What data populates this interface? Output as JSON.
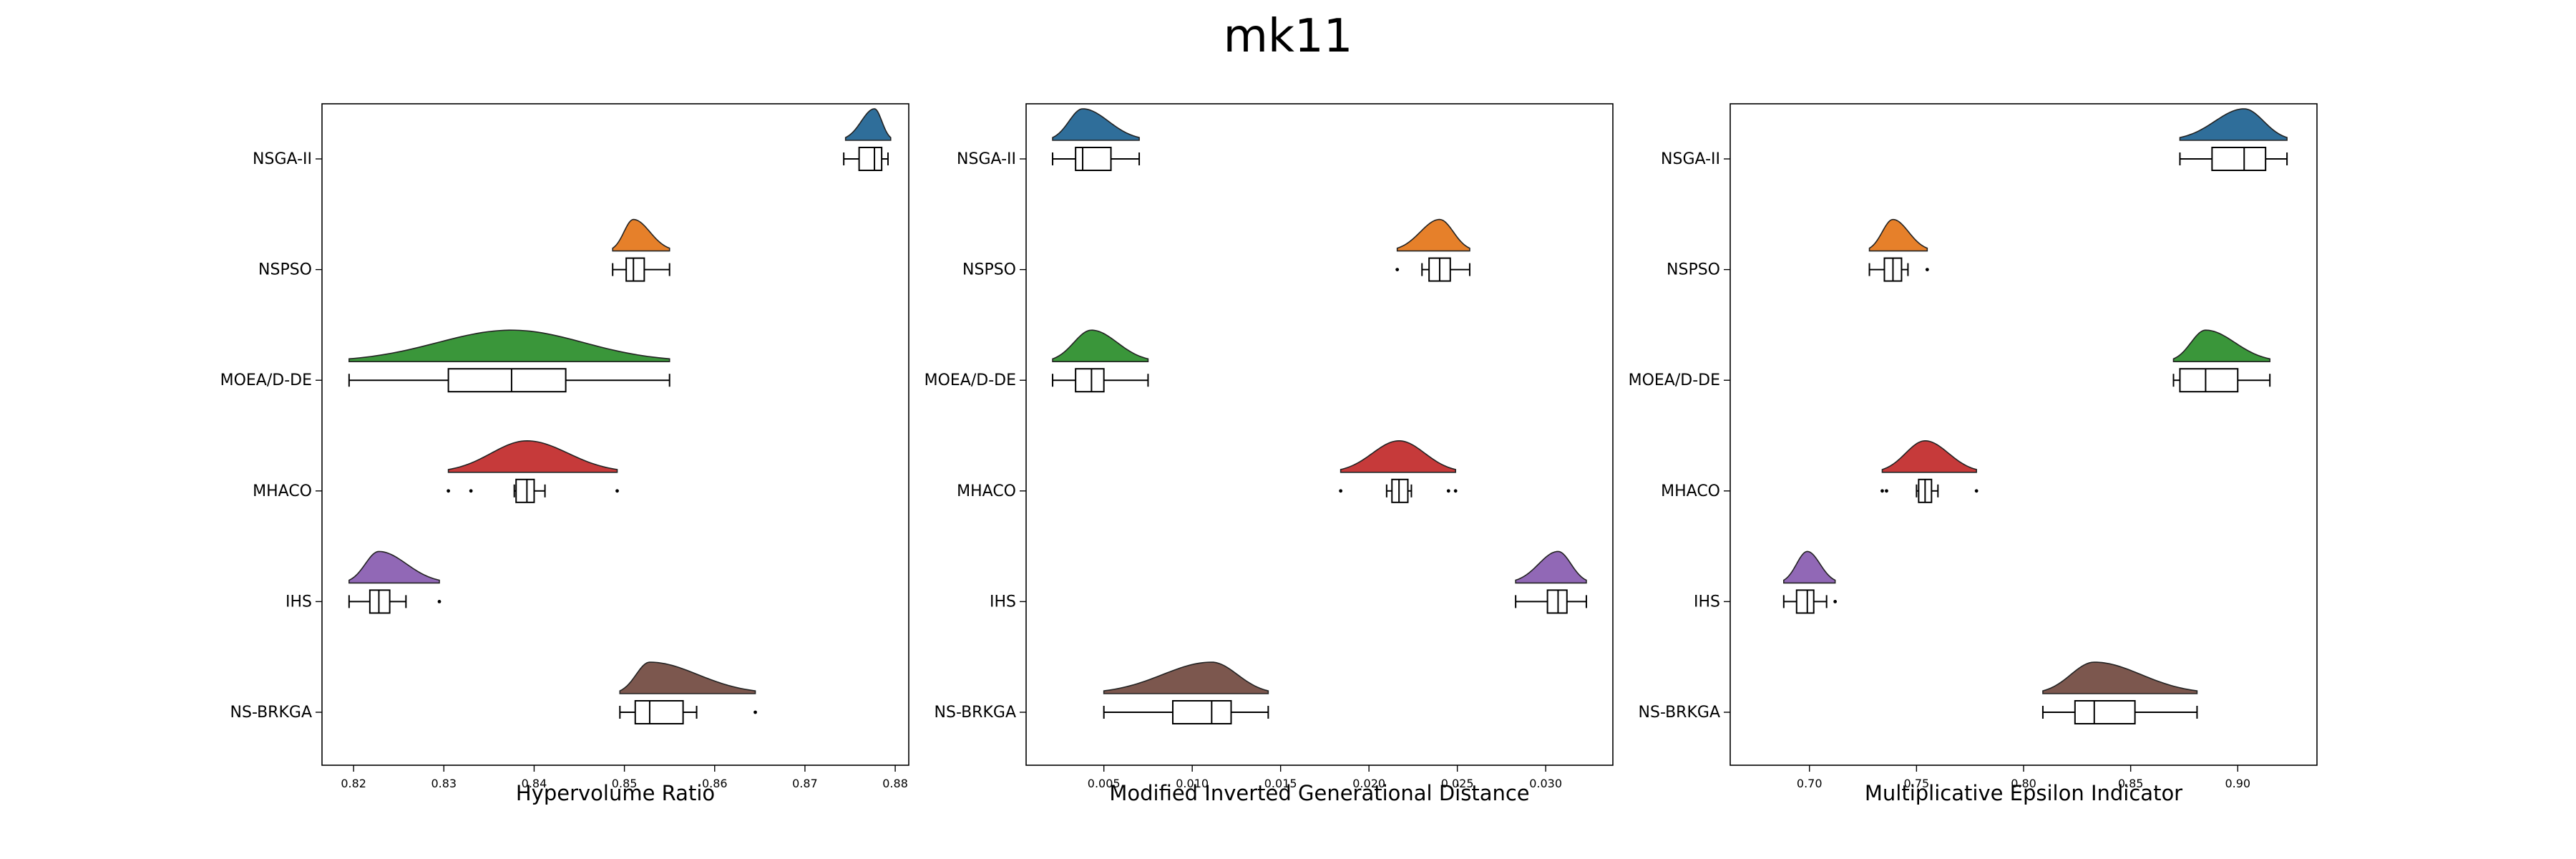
{
  "figure": {
    "title": "mk11"
  },
  "palette": {
    "NSGA-II": "#2f6e9a",
    "NSPSO": "#e6802a",
    "MOEA/D-DE": "#3a963a",
    "MHACO": "#c63a3a",
    "IHS": "#9168b6",
    "NS-BRKGA": "#7c574e"
  },
  "chart_data": [
    {
      "type": "raincloud",
      "title": "",
      "xlabel": "Hypervolume Ratio",
      "ylabel": "",
      "xlim": [
        0.8165,
        0.8815
      ],
      "xticks": [
        0.82,
        0.83,
        0.84,
        0.85,
        0.86,
        0.87,
        0.88
      ],
      "xtick_labels": [
        "0.82",
        "0.83",
        "0.84",
        "0.85",
        "0.86",
        "0.87",
        "0.88"
      ],
      "categories": [
        "NSGA-II",
        "NSPSO",
        "MOEA/D-DE",
        "MHACO",
        "IHS",
        "NS-BRKGA"
      ],
      "series": [
        {
          "name": "NSGA-II",
          "violin_range": [
            0.8745,
            0.8795
          ],
          "whisker_low": 0.8743,
          "q1": 0.876,
          "median": 0.8777,
          "q3": 0.8785,
          "whisker_high": 0.8792,
          "outliers": []
        },
        {
          "name": "NSPSO",
          "violin_range": [
            0.8487,
            0.855
          ],
          "whisker_low": 0.8487,
          "q1": 0.8502,
          "median": 0.851,
          "q3": 0.8522,
          "whisker_high": 0.855,
          "outliers": []
        },
        {
          "name": "MOEA/D-DE",
          "violin_range": [
            0.8195,
            0.855
          ],
          "whisker_low": 0.8195,
          "q1": 0.8305,
          "median": 0.8375,
          "q3": 0.8435,
          "whisker_high": 0.855,
          "outliers": []
        },
        {
          "name": "MHACO",
          "violin_range": [
            0.8305,
            0.8492
          ],
          "whisker_low": 0.8378,
          "q1": 0.838,
          "median": 0.8392,
          "q3": 0.84,
          "whisker_high": 0.8412,
          "outliers": [
            0.8305,
            0.833,
            0.8492
          ]
        },
        {
          "name": "IHS",
          "violin_range": [
            0.8195,
            0.8295
          ],
          "whisker_low": 0.8195,
          "q1": 0.8218,
          "median": 0.8228,
          "q3": 0.824,
          "whisker_high": 0.8258,
          "outliers": [
            0.8295
          ]
        },
        {
          "name": "NS-BRKGA",
          "violin_range": [
            0.8495,
            0.8645
          ],
          "whisker_low": 0.8495,
          "q1": 0.8512,
          "median": 0.8528,
          "q3": 0.8565,
          "whisker_high": 0.858,
          "outliers": [
            0.8645
          ]
        }
      ]
    },
    {
      "type": "raincloud",
      "title": "",
      "xlabel": "Modified Inverted Generational Distance",
      "ylabel": "",
      "xlim": [
        0.0006,
        0.0338
      ],
      "xticks": [
        0.005,
        0.01,
        0.015,
        0.02,
        0.025,
        0.03
      ],
      "xtick_labels": [
        "0.005",
        "0.010",
        "0.015",
        "0.020",
        "0.025",
        "0.030"
      ],
      "categories": [
        "NSGA-II",
        "NSPSO",
        "MOEA/D-DE",
        "MHACO",
        "IHS",
        "NS-BRKGA"
      ],
      "series": [
        {
          "name": "NSGA-II",
          "violin_range": [
            0.0021,
            0.007
          ],
          "whisker_low": 0.0021,
          "q1": 0.0034,
          "median": 0.0038,
          "q3": 0.0054,
          "whisker_high": 0.007,
          "outliers": []
        },
        {
          "name": "NSPSO",
          "violin_range": [
            0.0216,
            0.0257
          ],
          "whisker_low": 0.023,
          "q1": 0.0234,
          "median": 0.024,
          "q3": 0.0246,
          "whisker_high": 0.0257,
          "outliers": [
            0.0216
          ]
        },
        {
          "name": "MOEA/D-DE",
          "violin_range": [
            0.0021,
            0.0075
          ],
          "whisker_low": 0.0021,
          "q1": 0.0034,
          "median": 0.0043,
          "q3": 0.005,
          "whisker_high": 0.0075,
          "outliers": []
        },
        {
          "name": "MHACO",
          "violin_range": [
            0.0184,
            0.0249
          ],
          "whisker_low": 0.021,
          "q1": 0.0213,
          "median": 0.0217,
          "q3": 0.0222,
          "whisker_high": 0.0224,
          "outliers": [
            0.0184,
            0.0245,
            0.0249
          ]
        },
        {
          "name": "IHS",
          "violin_range": [
            0.0283,
            0.0323
          ],
          "whisker_low": 0.0283,
          "q1": 0.0301,
          "median": 0.0307,
          "q3": 0.0312,
          "whisker_high": 0.0323,
          "outliers": []
        },
        {
          "name": "NS-BRKGA",
          "violin_range": [
            0.005,
            0.0143
          ],
          "whisker_low": 0.005,
          "q1": 0.0089,
          "median": 0.0111,
          "q3": 0.0122,
          "whisker_high": 0.0143,
          "outliers": []
        }
      ]
    },
    {
      "type": "raincloud",
      "title": "",
      "xlabel": "Multiplicative Epsilon Indicator",
      "ylabel": "",
      "xlim": [
        0.663,
        0.937
      ],
      "xticks": [
        0.7,
        0.75,
        0.8,
        0.85,
        0.9
      ],
      "xtick_labels": [
        "0.70",
        "0.75",
        "0.80",
        "0.85",
        "0.90"
      ],
      "categories": [
        "NSGA-II",
        "NSPSO",
        "MOEA/D-DE",
        "MHACO",
        "IHS",
        "NS-BRKGA"
      ],
      "series": [
        {
          "name": "NSGA-II",
          "violin_range": [
            0.873,
            0.923
          ],
          "whisker_low": 0.873,
          "q1": 0.888,
          "median": 0.903,
          "q3": 0.913,
          "whisker_high": 0.923,
          "outliers": []
        },
        {
          "name": "NSPSO",
          "violin_range": [
            0.728,
            0.755
          ],
          "whisker_low": 0.728,
          "q1": 0.735,
          "median": 0.739,
          "q3": 0.743,
          "whisker_high": 0.746,
          "outliers": [
            0.755
          ]
        },
        {
          "name": "MOEA/D-DE",
          "violin_range": [
            0.87,
            0.915
          ],
          "whisker_low": 0.87,
          "q1": 0.873,
          "median": 0.885,
          "q3": 0.9,
          "whisker_high": 0.915,
          "outliers": []
        },
        {
          "name": "MHACO",
          "violin_range": [
            0.734,
            0.778
          ],
          "whisker_low": 0.75,
          "q1": 0.751,
          "median": 0.754,
          "q3": 0.757,
          "whisker_high": 0.76,
          "outliers": [
            0.734,
            0.736,
            0.778
          ]
        },
        {
          "name": "IHS",
          "violin_range": [
            0.688,
            0.712
          ],
          "whisker_low": 0.688,
          "q1": 0.694,
          "median": 0.699,
          "q3": 0.702,
          "whisker_high": 0.708,
          "outliers": [
            0.712
          ]
        },
        {
          "name": "NS-BRKGA",
          "violin_range": [
            0.809,
            0.881
          ],
          "whisker_low": 0.809,
          "q1": 0.824,
          "median": 0.833,
          "q3": 0.852,
          "whisker_high": 0.881,
          "outliers": []
        }
      ]
    }
  ]
}
